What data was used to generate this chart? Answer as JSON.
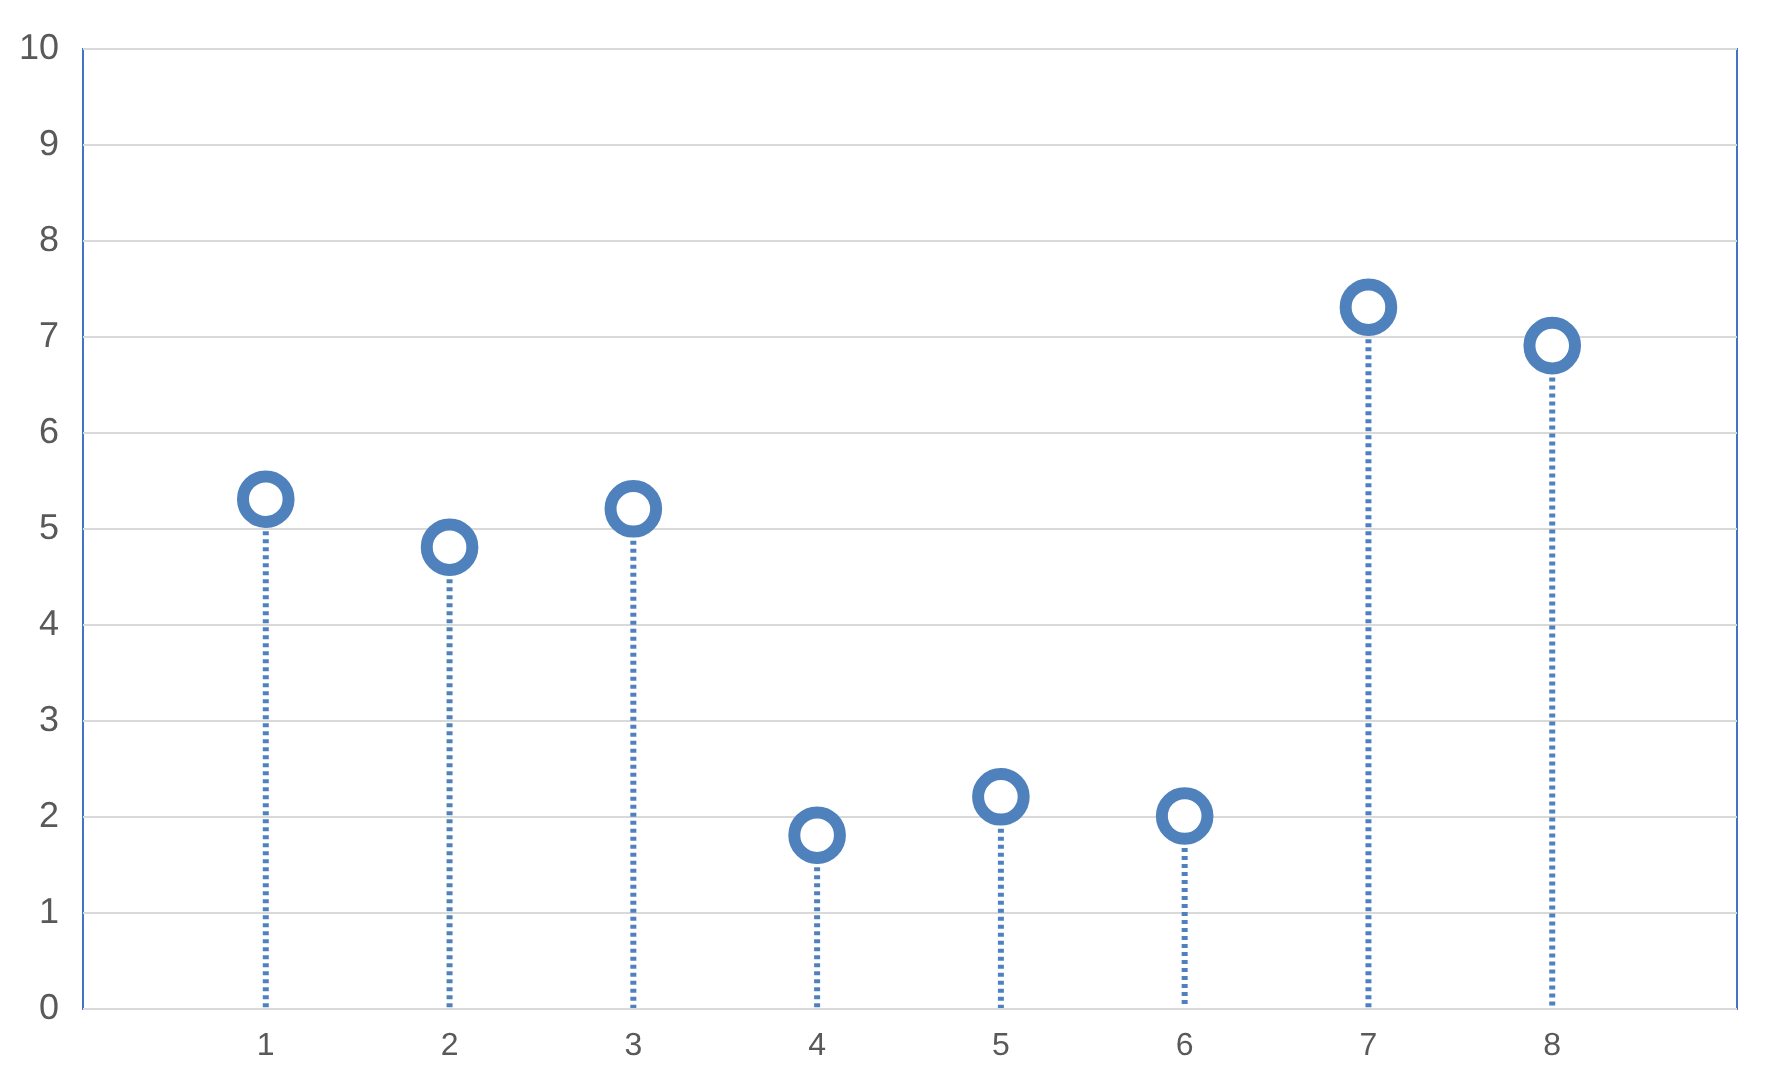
{
  "chart_data": {
    "type": "lollipop",
    "categories": [
      "1",
      "2",
      "3",
      "4",
      "5",
      "6",
      "7",
      "8"
    ],
    "values": [
      5.3,
      4.8,
      5.2,
      1.8,
      2.2,
      2.0,
      7.3,
      6.9
    ],
    "color": "#4f81bd",
    "ylim": [
      0,
      10
    ],
    "yticks": [
      0,
      1,
      2,
      3,
      4,
      5,
      6,
      7,
      8,
      9,
      10
    ],
    "grid": "y",
    "marker": "circle",
    "line_style": "dotted"
  }
}
